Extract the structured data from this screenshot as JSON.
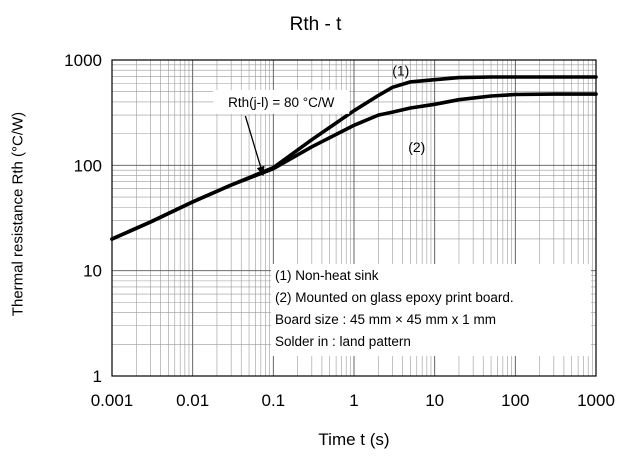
{
  "chart_data": {
    "type": "line",
    "title": "Rth - t",
    "xlabel": "Time  t (s)",
    "ylabel": "Thermal resistance  Rth (°C/W)",
    "xscale": "log",
    "yscale": "log",
    "xlim": [
      0.001,
      1000
    ],
    "ylim": [
      1,
      1000
    ],
    "xticks": [
      "0.001",
      "0.01",
      "0.1",
      "1",
      "10",
      "100",
      "1000"
    ],
    "yticks": [
      "1",
      "10",
      "100",
      "1000"
    ],
    "grid": true,
    "series": [
      {
        "name": "(1)",
        "x": [
          0.001,
          0.003,
          0.01,
          0.03,
          0.1,
          0.3,
          1,
          2,
          3,
          5,
          10,
          20,
          50,
          100,
          300,
          1000
        ],
        "y": [
          20,
          29,
          45,
          65,
          95,
          175,
          330,
          460,
          550,
          620,
          650,
          680,
          690,
          690,
          690,
          690
        ]
      },
      {
        "name": "(2)",
        "x": [
          0.001,
          0.003,
          0.01,
          0.03,
          0.1,
          0.3,
          1,
          2,
          3,
          5,
          10,
          20,
          50,
          100,
          300,
          1000
        ],
        "y": [
          20,
          29,
          45,
          65,
          93,
          150,
          240,
          300,
          320,
          350,
          380,
          420,
          455,
          470,
          475,
          475
        ]
      }
    ],
    "annotations": {
      "series1_label": "(1)",
      "series2_label": "(2)",
      "rth_jl": "Rth(j-l) = 80 °C/W",
      "notes": [
        "(1) Non-heat sink",
        "(2) Mounted on glass epoxy print board.",
        "Board size : 45 mm × 45 mm x 1 mm",
        "Solder in : land pattern"
      ]
    }
  }
}
